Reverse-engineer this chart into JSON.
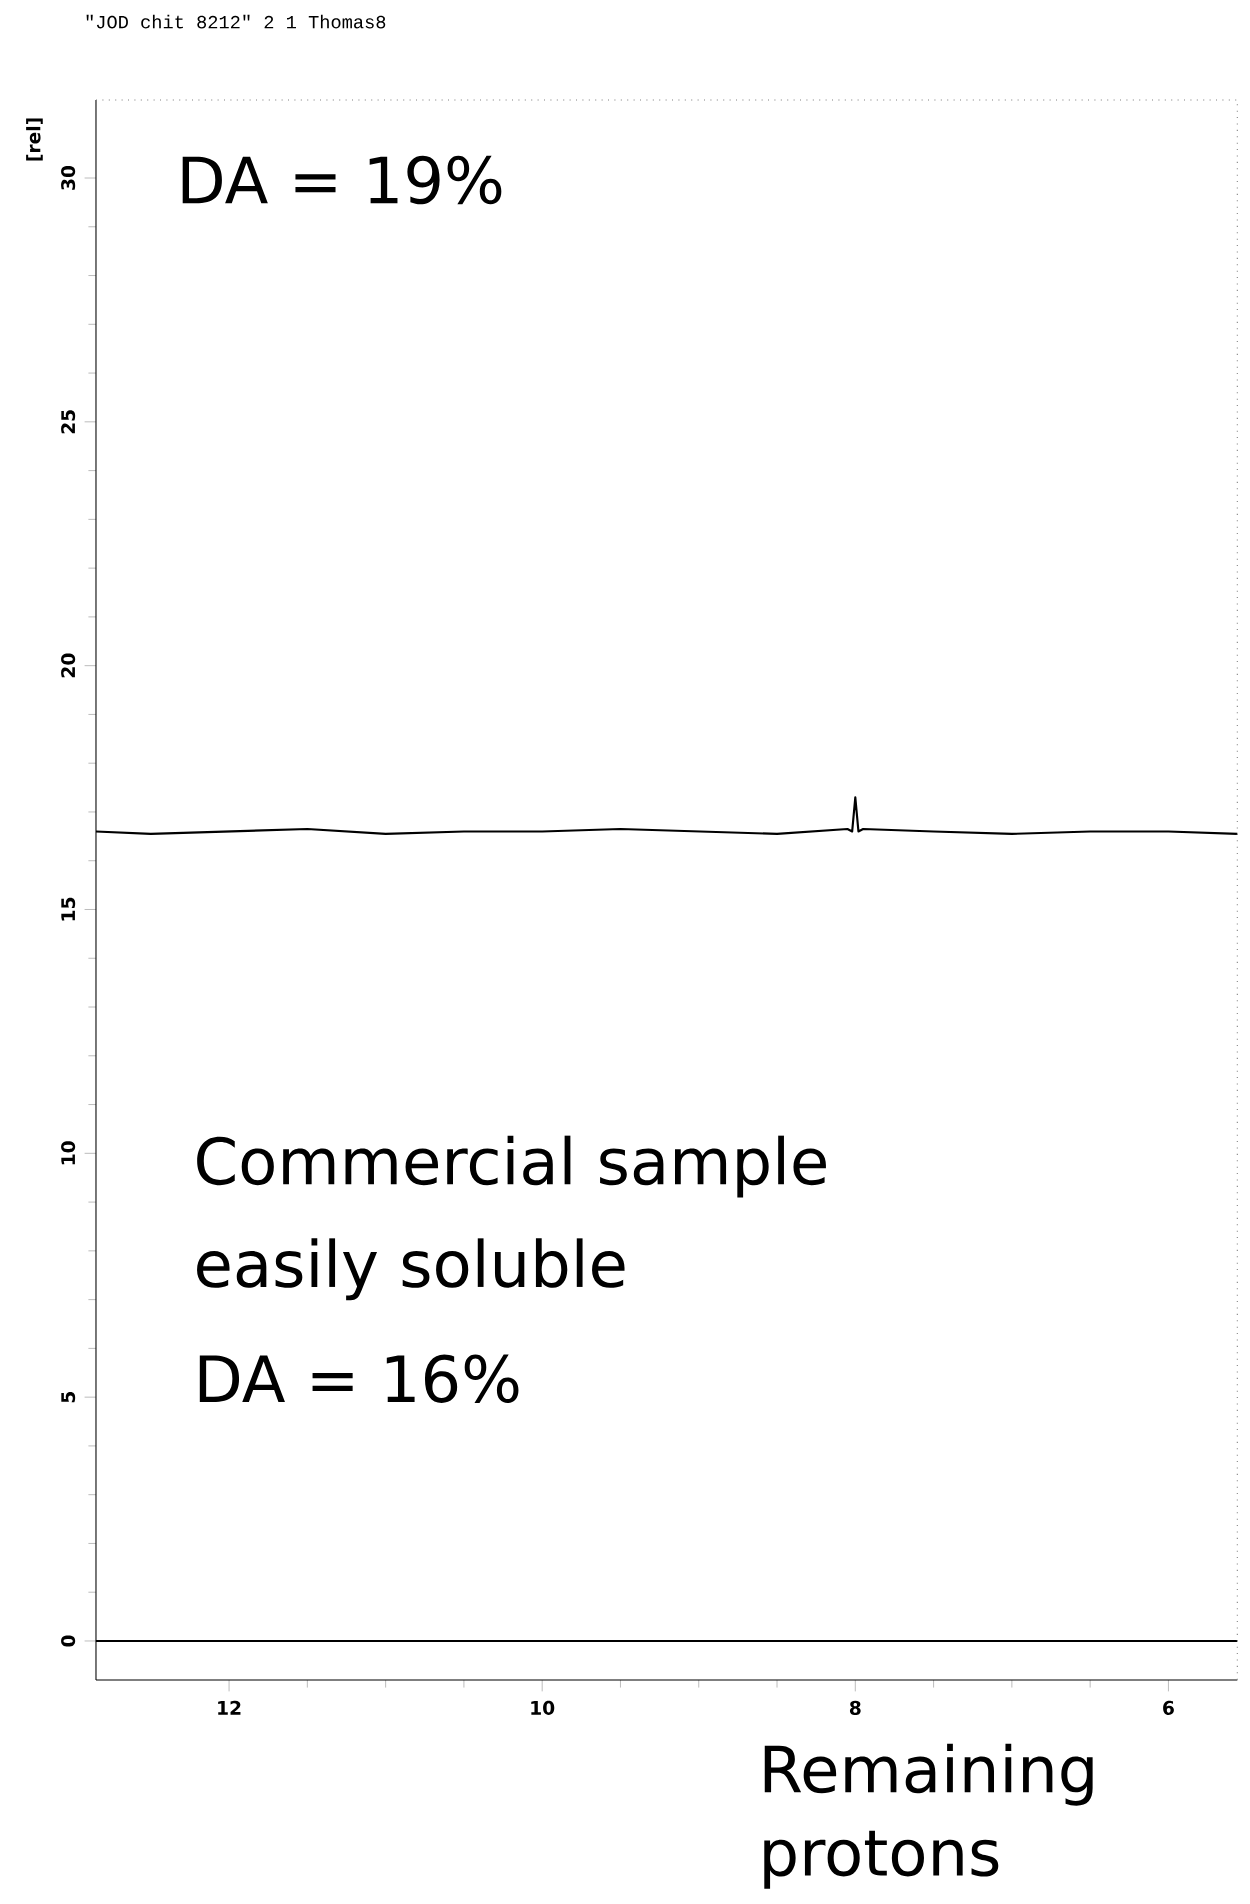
{
  "chart_data": {
    "type": "line",
    "title": "\"JOD chit 8212\"  2  1  Thomas8",
    "ylabel": "[rel]",
    "xlim": [
      12.85,
      5.56
    ],
    "ylim": [
      -0.8,
      31.6
    ],
    "xticks": [
      12,
      10,
      8,
      6
    ],
    "yticks": [
      0,
      5,
      10,
      15,
      20,
      25,
      30
    ],
    "series": [
      {
        "color": "#000000",
        "x": [
          12.85,
          12.5,
          12,
          11.5,
          11,
          10.5,
          10,
          9.5,
          9,
          8.5,
          8.05,
          8.02,
          8.0,
          7.98,
          7.95,
          7.5,
          7,
          6.5,
          6,
          5.56
        ],
        "values": [
          16.6,
          16.55,
          16.6,
          16.65,
          16.55,
          16.6,
          16.6,
          16.65,
          16.6,
          16.55,
          16.65,
          16.6,
          17.3,
          16.6,
          16.65,
          16.6,
          16.55,
          16.6,
          16.6,
          16.55
        ]
      },
      {
        "color": "#000000",
        "x": [
          12.85,
          12,
          11,
          10,
          9,
          8,
          7,
          6,
          5.56
        ],
        "values": [
          0,
          0,
          0,
          0,
          0,
          0,
          0,
          0,
          0
        ]
      }
    ],
    "annotations": [
      "DA = 19%",
      "Commercial sample",
      "easily soluble",
      "DA = 16%",
      "Remaining",
      "protons"
    ]
  }
}
